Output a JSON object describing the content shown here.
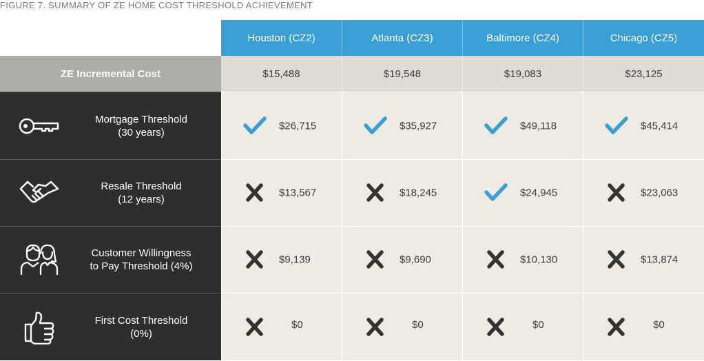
{
  "figure_title": "FIGURE 7. SUMMARY OF ZE HOME COST THRESHOLD ACHIEVEMENT",
  "columns": [
    "Houston (CZ2)",
    "Atlanta (CZ3)",
    "Baltimore (CZ4)",
    "Chicago (CZ5)"
  ],
  "incremental_cost": {
    "label": "ZE Incremental Cost",
    "values": [
      "$15,488",
      "$19,548",
      "$19,083",
      "$23,125"
    ]
  },
  "rows": [
    {
      "icon": "key-icon",
      "label_line1": "Mortgage Threshold",
      "label_line2": "(30 years)",
      "cells": [
        {
          "status": "check",
          "value": "$26,715"
        },
        {
          "status": "check",
          "value": "$35,927"
        },
        {
          "status": "check",
          "value": "$49,118"
        },
        {
          "status": "check",
          "value": "$45,414"
        }
      ]
    },
    {
      "icon": "handshake-icon",
      "label_line1": "Resale Threshold",
      "label_line2": "(12 years)",
      "cells": [
        {
          "status": "cross",
          "value": "$13,567"
        },
        {
          "status": "cross",
          "value": "$18,245"
        },
        {
          "status": "check",
          "value": "$24,945"
        },
        {
          "status": "cross",
          "value": "$23,063"
        }
      ]
    },
    {
      "icon": "customers-icon",
      "label_line1": "Customer Willingness",
      "label_line2": "to Pay Threshold (4%)",
      "cells": [
        {
          "status": "cross",
          "value": "$9,139"
        },
        {
          "status": "cross",
          "value": "$9,690"
        },
        {
          "status": "cross",
          "value": "$10,130"
        },
        {
          "status": "cross",
          "value": "$13,874"
        }
      ]
    },
    {
      "icon": "thumbs-up-icon",
      "label_line1": "First Cost Threshold",
      "label_line2": "(0%)",
      "cells": [
        {
          "status": "cross",
          "value": "$0"
        },
        {
          "status": "cross",
          "value": "$0"
        },
        {
          "status": "cross",
          "value": "$0"
        },
        {
          "status": "cross",
          "value": "$0"
        }
      ]
    }
  ],
  "colors": {
    "header_blue": "#3a9fd5",
    "check_blue": "#3a9fd5",
    "cross_dark": "#333333",
    "label_dark": "#2e2e2c",
    "cost_label_grey": "#adaba8"
  }
}
